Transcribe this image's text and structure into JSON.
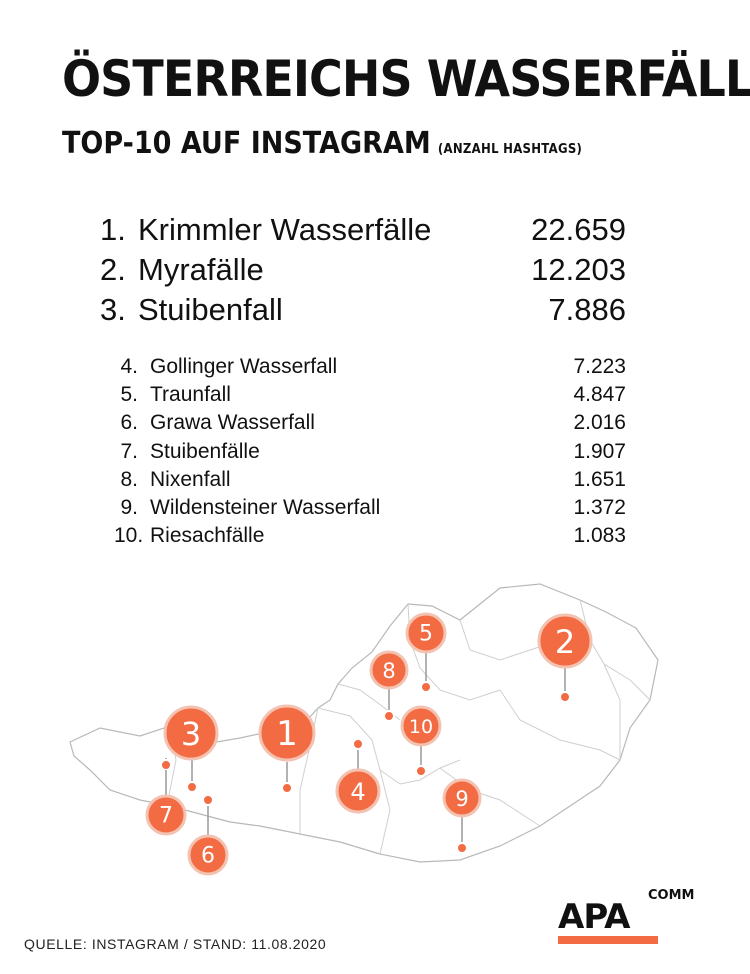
{
  "header": {
    "title": "ÖSTERREICHS WASSERFÄLLE",
    "subtitle": "TOP-10 AUF INSTAGRAM",
    "subtitle_note": "(ANZAHL HASHTAGS)"
  },
  "ranking": [
    {
      "rank": "1.",
      "name": "Krimmler Wasserfälle",
      "value": "22.659"
    },
    {
      "rank": "2.",
      "name": "Myrafälle",
      "value": "12.203"
    },
    {
      "rank": "3.",
      "name": "Stuibenfall",
      "value": "7.886"
    },
    {
      "rank": "4.",
      "name": "Gollinger Wasserfall",
      "value": "7.223"
    },
    {
      "rank": "5.",
      "name": "Traunfall",
      "value": "4.847"
    },
    {
      "rank": "6.",
      "name": "Grawa Wasserfall",
      "value": "2.016"
    },
    {
      "rank": "7.",
      "name": "Stuibenfälle",
      "value": "1.907"
    },
    {
      "rank": "8.",
      "name": "Nixenfall",
      "value": "1.651"
    },
    {
      "rank": "9.",
      "name": "Wildensteiner Wasserfall",
      "value": "1.372"
    },
    {
      "rank": "10.",
      "name": "Riesachfälle",
      "value": "1.083"
    }
  ],
  "map": {
    "pins": [
      "1",
      "2",
      "3",
      "4",
      "5",
      "6",
      "7",
      "8",
      "9",
      "10"
    ],
    "pin_color": "#f26b43"
  },
  "footer": {
    "source": "QUELLE: INSTAGRAM / STAND: 11.08.2020",
    "logo_main": "APA",
    "logo_sub": "COMM",
    "logo_color": "#f26b43"
  }
}
